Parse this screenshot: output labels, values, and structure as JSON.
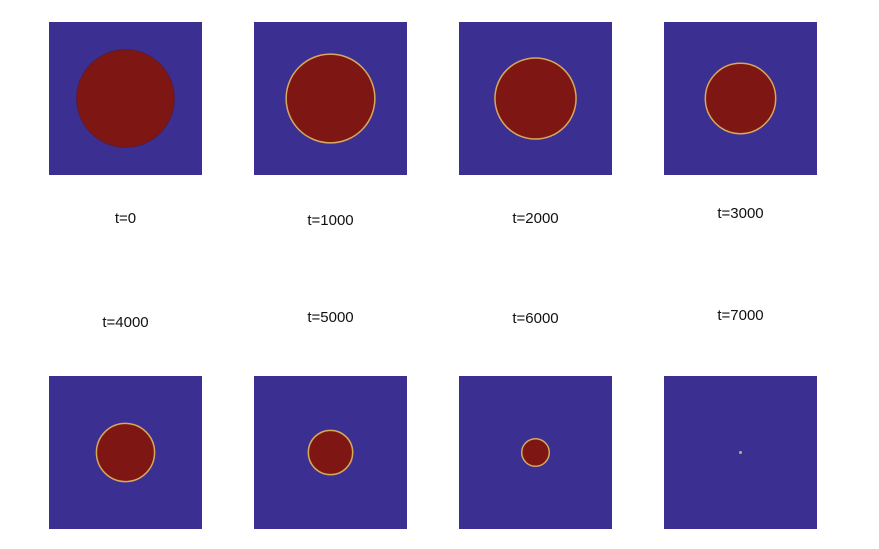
{
  "colors": {
    "background_phase": "#3b2f91",
    "droplet": "#7e1714",
    "interface": "#d7a85a"
  },
  "snapshots": [
    {
      "label": "t=0",
      "relative_radius": 0.32,
      "interface_visible": false
    },
    {
      "label": "t=1000",
      "relative_radius": 0.29,
      "interface_visible": true
    },
    {
      "label": "t=2000",
      "relative_radius": 0.265,
      "interface_visible": true
    },
    {
      "label": "t=3000",
      "relative_radius": 0.23,
      "interface_visible": true
    },
    {
      "label": "t=4000",
      "relative_radius": 0.19,
      "interface_visible": true
    },
    {
      "label": "t=5000",
      "relative_radius": 0.145,
      "interface_visible": true
    },
    {
      "label": "t=6000",
      "relative_radius": 0.09,
      "interface_visible": true
    },
    {
      "label": "t=7000",
      "relative_radius": 0.01,
      "interface_visible": true
    }
  ]
}
